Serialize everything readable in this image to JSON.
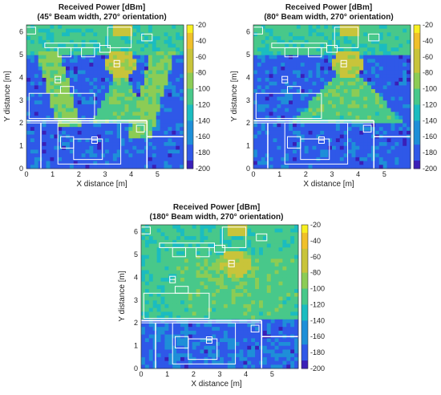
{
  "colorbar_ticks": [
    "-20",
    "-40",
    "-60",
    "-80",
    "-100",
    "-120",
    "-140",
    "-160",
    "-180",
    "-200"
  ],
  "colors": {
    "scale": [
      "#3a1fb8",
      "#2f58e8",
      "#1e8fd8",
      "#1bbcc0",
      "#48c88a",
      "#8ccc55",
      "#c8c43a",
      "#f0c02a",
      "#f8f020"
    ],
    "walls": "#ffffff"
  },
  "chart_data": [
    {
      "type": "heatmap",
      "title": "Received Power [dBm]",
      "subtitle": "(45° Beam width, 270° orientation)",
      "xlabel": "X distance [m]",
      "ylabel": "Y distance [m]",
      "xlim": [
        0,
        6
      ],
      "ylim": [
        0,
        6.3
      ],
      "x_ticks": [
        "0",
        "1",
        "2",
        "3",
        "4",
        "5"
      ],
      "y_ticks": [
        "0",
        "1",
        "2",
        "3",
        "4",
        "5",
        "6"
      ],
      "colorbar": {
        "min": -200,
        "max": -20,
        "ticks": [
          -20,
          -40,
          -60,
          -80,
          -100,
          -120,
          -140,
          -160,
          -180,
          -200
        ]
      },
      "beam_width_deg": 45,
      "orientation_deg": 270
    },
    {
      "type": "heatmap",
      "title": "Received Power [dBm]",
      "subtitle": "(80° Beam width, 270° orientation)",
      "xlabel": "X distance [m]",
      "ylabel": "Y distance [m]",
      "xlim": [
        0,
        6
      ],
      "ylim": [
        0,
        6.3
      ],
      "x_ticks": [
        "0",
        "1",
        "2",
        "3",
        "4",
        "5"
      ],
      "y_ticks": [
        "0",
        "1",
        "2",
        "3",
        "4",
        "5",
        "6"
      ],
      "colorbar": {
        "min": -200,
        "max": -20,
        "ticks": [
          -20,
          -40,
          -60,
          -80,
          -100,
          -120,
          -140,
          -160,
          -180,
          -200
        ]
      },
      "beam_width_deg": 80,
      "orientation_deg": 270
    },
    {
      "type": "heatmap",
      "title": "Received Power [dBm]",
      "subtitle": "(180° Beam width, 270° orientation)",
      "xlabel": "X distance [m]",
      "ylabel": "Y distance [m]",
      "xlim": [
        0,
        6
      ],
      "ylim": [
        0,
        6.3
      ],
      "x_ticks": [
        "0",
        "1",
        "2",
        "3",
        "4",
        "5"
      ],
      "y_ticks": [
        "0",
        "1",
        "2",
        "3",
        "4",
        "5",
        "6"
      ],
      "colorbar": {
        "min": -200,
        "max": -20,
        "ticks": [
          -20,
          -40,
          -60,
          -80,
          -100,
          -120,
          -140,
          -160,
          -180,
          -200
        ]
      },
      "beam_width_deg": 180,
      "orientation_deg": 270
    }
  ]
}
